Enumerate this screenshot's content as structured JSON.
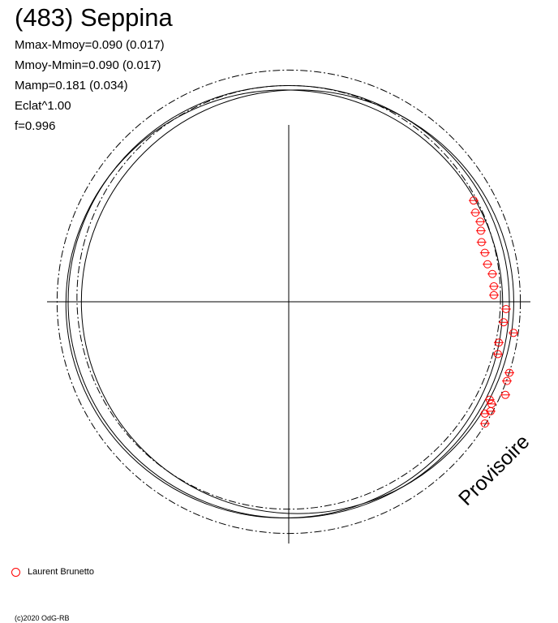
{
  "title": "(483) Seppina",
  "stats": [
    "Mmax-Mmoy=0.090 (0.017)",
    "Mmoy-Mmin=0.090 (0.017)",
    "Mamp=0.181 (0.034)",
    "Eclat^1.00",
    "f=0.996"
  ],
  "watermark": "Provisoire",
  "copyright": "(c)2020 OdG-RB",
  "colors": {
    "axes": "#000000",
    "curves": "#000000",
    "observations": "#ff0000"
  },
  "chart_data": {
    "type": "scatter",
    "title": "(483) Seppina",
    "grid": false,
    "axes": "crosshair through origin",
    "xlim": [
      -1.1,
      1.1
    ],
    "ylim": [
      -1.1,
      1.1
    ],
    "legend": {
      "position": "bottom-left",
      "entries": [
        {
          "name": "Laurent Brunetto",
          "marker": "open-circle",
          "color": "#ff0000"
        }
      ]
    },
    "model_curves": [
      {
        "style": "dash-dot",
        "rx": 1.05,
        "ry": 1.05,
        "cx": 0.0,
        "cy": 0.0
      },
      {
        "style": "dash-dot",
        "rx": 0.96,
        "ry": 0.96,
        "cx": 0.0,
        "cy": 0.02
      },
      {
        "style": "solid",
        "rx": 1.0,
        "ry": 0.98,
        "cx": 0.0,
        "cy": 0.0
      },
      {
        "style": "solid",
        "rx": 0.98,
        "ry": 0.96,
        "cx": 0.04,
        "cy": 0.0
      },
      {
        "style": "solid",
        "rx": 0.99,
        "ry": 0.97,
        "cx": -0.02,
        "cy": -0.01
      }
    ],
    "series": [
      {
        "name": "Laurent Brunetto",
        "points": [
          {
            "x": 0.838,
            "y": 0.459
          },
          {
            "x": 0.846,
            "y": 0.404
          },
          {
            "x": 0.868,
            "y": 0.363
          },
          {
            "x": 0.871,
            "y": 0.322
          },
          {
            "x": 0.874,
            "y": 0.27
          },
          {
            "x": 0.889,
            "y": 0.222
          },
          {
            "x": 0.901,
            "y": 0.17
          },
          {
            "x": 0.923,
            "y": 0.126
          },
          {
            "x": 0.93,
            "y": 0.07
          },
          {
            "x": 0.93,
            "y": 0.03
          },
          {
            "x": 0.985,
            "y": -0.033
          },
          {
            "x": 0.974,
            "y": -0.093
          },
          {
            "x": 1.019,
            "y": -0.141
          },
          {
            "x": 0.952,
            "y": -0.185
          },
          {
            "x": 0.948,
            "y": -0.237
          },
          {
            "x": 1.0,
            "y": -0.322
          },
          {
            "x": 0.989,
            "y": -0.359
          },
          {
            "x": 0.982,
            "y": -0.422
          },
          {
            "x": 0.911,
            "y": -0.444
          },
          {
            "x": 0.919,
            "y": -0.463
          },
          {
            "x": 0.915,
            "y": -0.496
          },
          {
            "x": 0.889,
            "y": -0.507
          },
          {
            "x": 0.889,
            "y": -0.552
          }
        ]
      }
    ]
  }
}
